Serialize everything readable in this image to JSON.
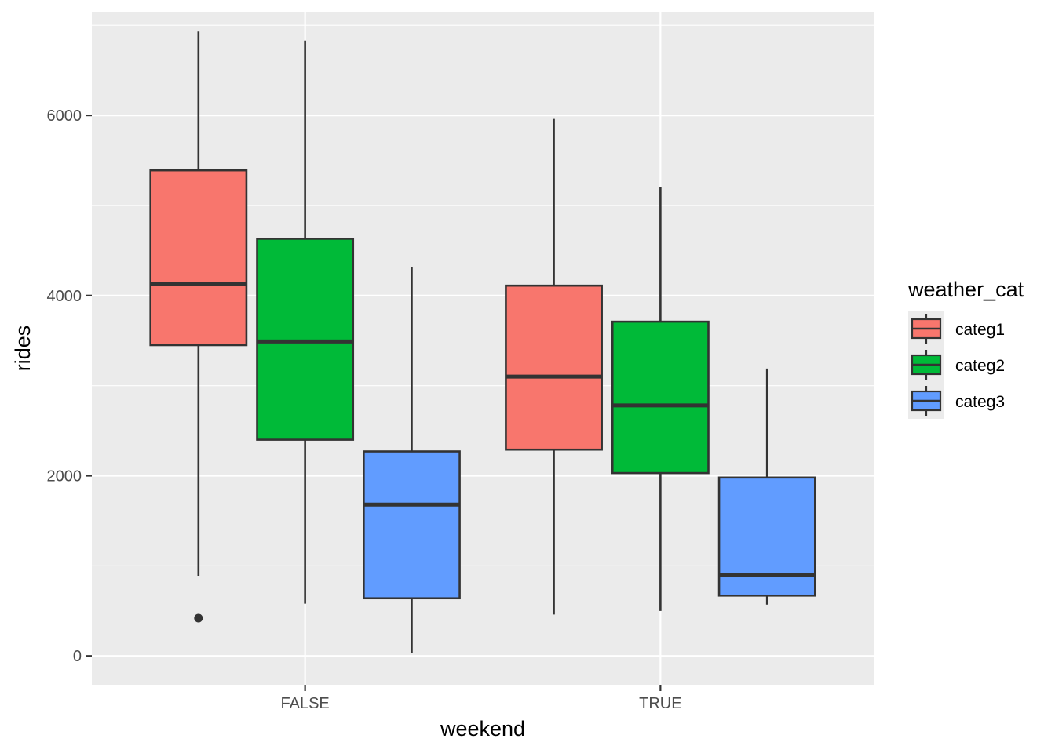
{
  "chart_data": {
    "type": "boxplot",
    "title": "",
    "xlabel": "weekend",
    "ylabel": "rides",
    "categories": [
      "FALSE",
      "TRUE"
    ],
    "y_ticks": [
      0,
      2000,
      4000,
      6000
    ],
    "y_tick_labels": [
      "0",
      "2000",
      "4000",
      "6000"
    ],
    "ylim": [
      -320,
      7150
    ],
    "grid": true,
    "legend": {
      "title": "weather_cat",
      "placement": "right"
    },
    "series": [
      {
        "name": "categ1",
        "color": "#F8766D",
        "boxes": [
          {
            "category": "FALSE",
            "whisker_low": 890,
            "q1": 3450,
            "median": 4130,
            "q3": 5390,
            "whisker_high": 6930,
            "outliers": [
              420
            ]
          },
          {
            "category": "TRUE",
            "whisker_low": 460,
            "q1": 2290,
            "median": 3100,
            "q3": 4110,
            "whisker_high": 5960,
            "outliers": []
          }
        ]
      },
      {
        "name": "categ2",
        "color": "#00BA38",
        "boxes": [
          {
            "category": "FALSE",
            "whisker_low": 580,
            "q1": 2400,
            "median": 3490,
            "q3": 4630,
            "whisker_high": 6830,
            "outliers": []
          },
          {
            "category": "TRUE",
            "whisker_low": 500,
            "q1": 2030,
            "median": 2780,
            "q3": 3710,
            "whisker_high": 5200,
            "outliers": []
          }
        ]
      },
      {
        "name": "categ3",
        "color": "#619CFF",
        "boxes": [
          {
            "category": "FALSE",
            "whisker_low": 30,
            "q1": 640,
            "median": 1680,
            "q3": 2270,
            "whisker_high": 4320,
            "outliers": []
          },
          {
            "category": "TRUE",
            "whisker_low": 570,
            "q1": 670,
            "median": 900,
            "q3": 1980,
            "whisker_high": 3190,
            "outliers": []
          }
        ]
      }
    ]
  }
}
